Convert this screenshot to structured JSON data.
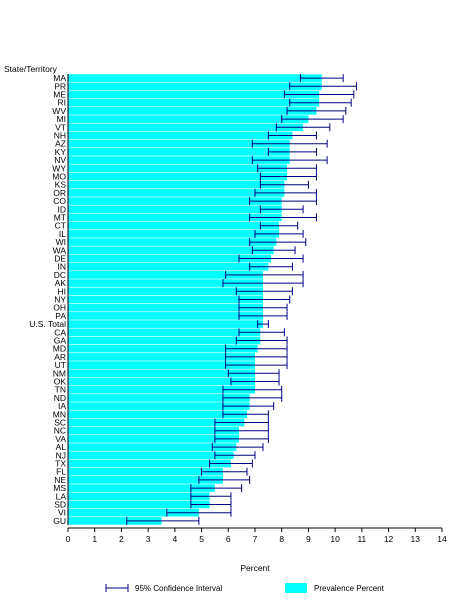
{
  "chart_data": {
    "type": "bar",
    "orientation": "horizontal",
    "y_axis_title": "State/Territory",
    "xlabel": "Percent",
    "xlim": [
      0,
      14
    ],
    "x_ticks": [
      "0",
      "1",
      "2",
      "3",
      "4",
      "5",
      "6",
      "7",
      "8",
      "9",
      "10",
      "11",
      "12",
      "13",
      "14"
    ],
    "grid": false,
    "legend": {
      "placement": "bottom",
      "entries": [
        {
          "label": "95% Confidence Interval",
          "color": "#000080"
        },
        {
          "label": "Prevalence Percent",
          "color": "#00ffff"
        }
      ]
    },
    "bar_color": "#00ffff",
    "ci_color": "#000080",
    "categories": [
      "MA",
      "PR",
      "ME",
      "RI",
      "WV",
      "MI",
      "VT",
      "NH",
      "AZ",
      "KY",
      "NV",
      "WY",
      "MO",
      "KS",
      "OR",
      "CO",
      "ID",
      "MT",
      "CT",
      "IL",
      "WI",
      "WA",
      "DE",
      "IN",
      "DC",
      "AK",
      "HI",
      "NY",
      "OH",
      "PA",
      "U.S. Total",
      "CA",
      "GA",
      "MD",
      "AR",
      "UT",
      "NM",
      "OK",
      "TN",
      "ND",
      "IA",
      "MN",
      "SC",
      "NC",
      "VA",
      "AL",
      "NJ",
      "TX",
      "FL",
      "NE",
      "MS",
      "LA",
      "SD",
      "VI",
      "GU"
    ],
    "values": [
      9.5,
      9.5,
      9.4,
      9.4,
      9.3,
      9.0,
      8.8,
      8.4,
      8.3,
      8.3,
      8.3,
      8.2,
      8.2,
      8.1,
      8.1,
      8.0,
      8.0,
      8.0,
      7.9,
      7.9,
      7.8,
      7.7,
      7.6,
      7.5,
      7.3,
      7.3,
      7.3,
      7.3,
      7.3,
      7.3,
      7.3,
      7.2,
      7.2,
      7.1,
      7.0,
      7.0,
      7.0,
      7.0,
      7.0,
      6.8,
      6.8,
      6.7,
      6.6,
      6.4,
      6.4,
      6.3,
      6.2,
      6.1,
      5.8,
      5.8,
      5.5,
      5.3,
      5.3,
      4.9,
      3.5
    ],
    "ci_lower": [
      8.7,
      8.3,
      8.1,
      8.3,
      8.2,
      8.0,
      7.8,
      7.5,
      6.9,
      7.5,
      6.9,
      7.1,
      7.2,
      7.2,
      7.0,
      6.8,
      7.2,
      6.8,
      7.2,
      7.0,
      6.8,
      6.9,
      6.4,
      6.8,
      5.9,
      5.8,
      6.3,
      6.4,
      6.4,
      6.4,
      7.1,
      6.4,
      6.3,
      5.9,
      5.9,
      5.9,
      6.0,
      6.1,
      5.8,
      5.8,
      5.8,
      5.8,
      5.5,
      5.5,
      5.5,
      5.4,
      5.5,
      5.3,
      5.0,
      4.9,
      4.6,
      4.6,
      4.6,
      3.7,
      2.2
    ],
    "ci_upper": [
      10.3,
      10.8,
      10.7,
      10.6,
      10.4,
      10.3,
      9.8,
      9.3,
      9.7,
      9.3,
      9.7,
      9.3,
      9.3,
      9.0,
      9.3,
      9.3,
      8.8,
      9.3,
      8.6,
      8.8,
      8.9,
      8.5,
      8.8,
      8.4,
      8.8,
      8.8,
      8.4,
      8.3,
      8.2,
      8.2,
      7.5,
      8.1,
      8.2,
      8.2,
      8.2,
      8.2,
      7.9,
      7.9,
      8.0,
      8.0,
      7.7,
      7.5,
      7.5,
      7.5,
      7.5,
      7.3,
      7.0,
      6.9,
      6.7,
      6.8,
      6.5,
      6.1,
      6.1,
      6.1,
      4.9
    ]
  }
}
